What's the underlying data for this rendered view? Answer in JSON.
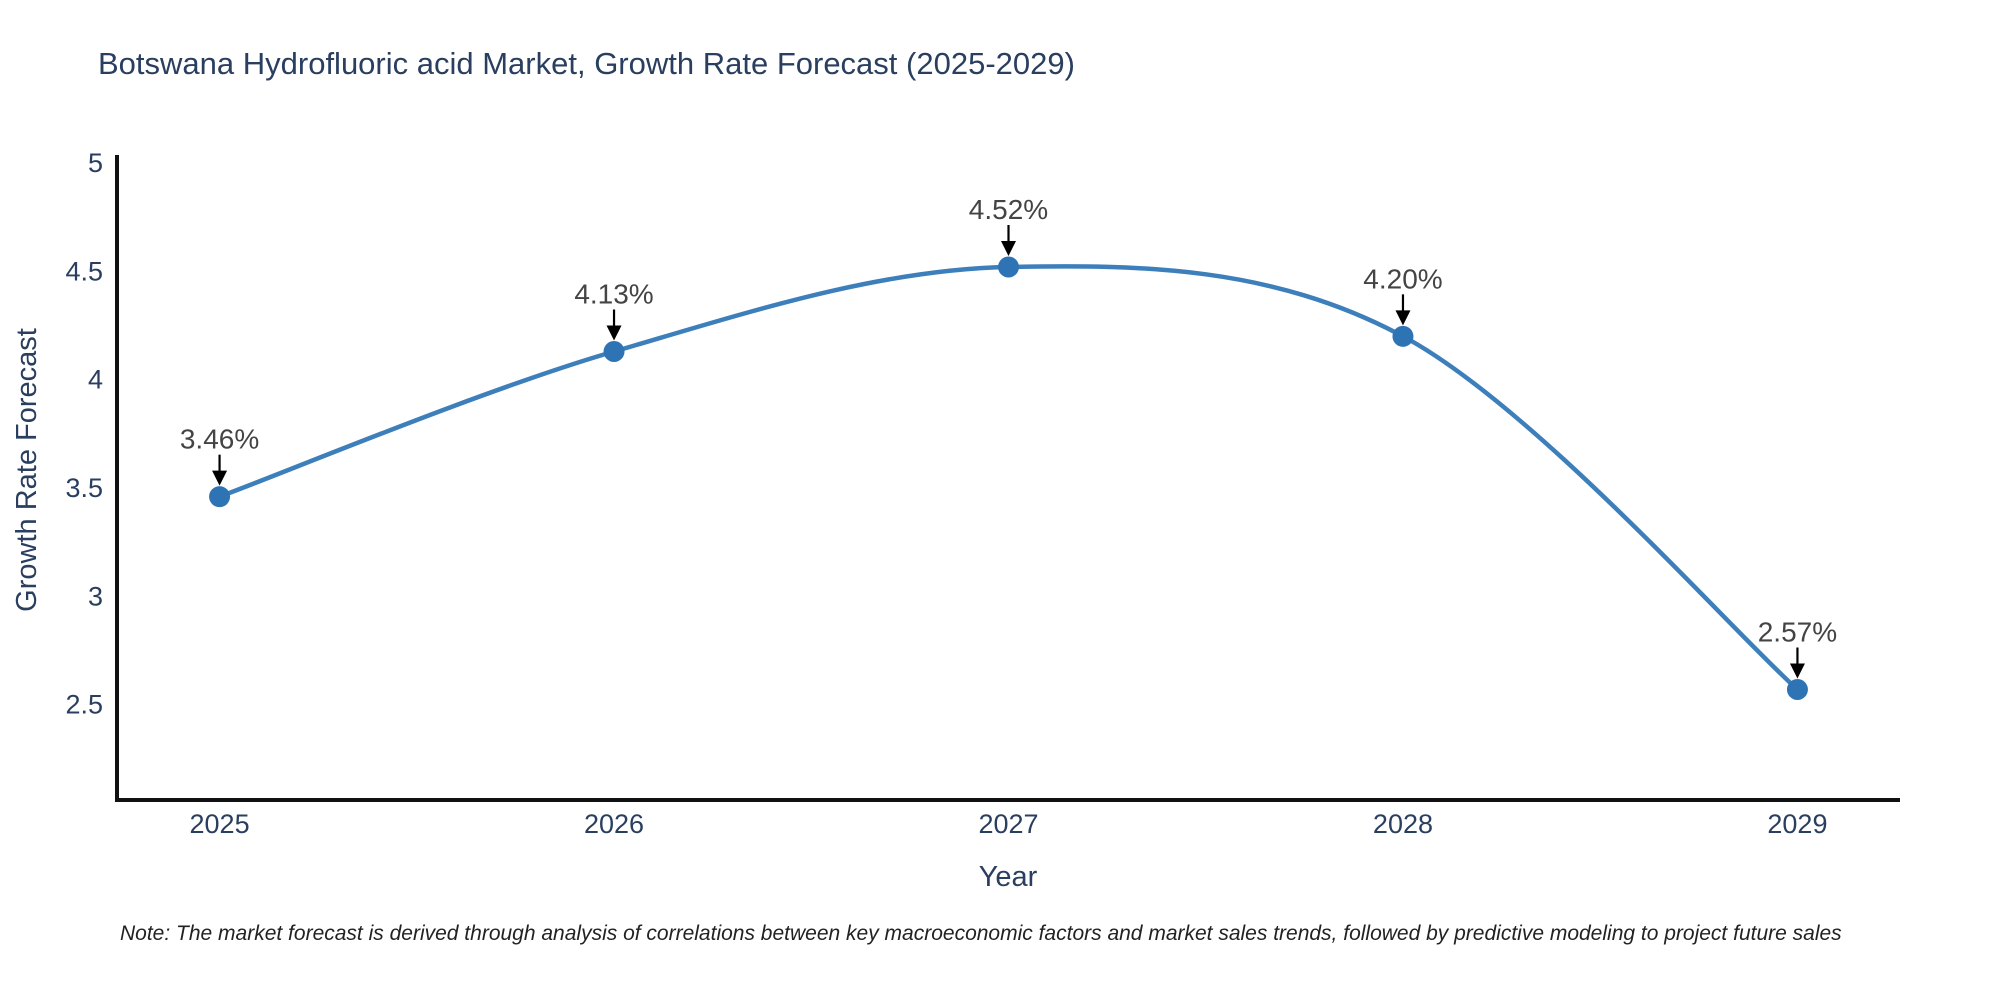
{
  "title": "Botswana Hydrofluoric acid Market, Growth Rate Forecast (2025-2029)",
  "note": "Note: The market forecast is derived through analysis of correlations between key macroeconomic factors and market sales trends, followed by predictive modeling to project future sales",
  "chart_data": {
    "type": "line",
    "title": "Botswana Hydrofluoric acid Market, Growth Rate Forecast (2025-2029)",
    "xlabel": "Year",
    "ylabel": "Growth Rate Forecast",
    "x": [
      2025,
      2026,
      2027,
      2028,
      2029
    ],
    "values": [
      3.46,
      4.13,
      4.52,
      4.2,
      2.57
    ],
    "point_labels": [
      "3.46%",
      "4.13%",
      "4.52%",
      "4.20%",
      "2.57%"
    ],
    "xticks": [
      "2025",
      "2026",
      "2027",
      "2028",
      "2029"
    ],
    "yticks": [
      "2.5",
      "3",
      "3.5",
      "4",
      "4.5",
      "5"
    ],
    "ytick_values": [
      2.5,
      3,
      3.5,
      4,
      4.5,
      5
    ],
    "xlim": [
      2024.74,
      2029.26
    ],
    "ylim": [
      2.06,
      5.0
    ],
    "grid": false,
    "legend": false,
    "line_shape": "spline",
    "colors": {
      "line": "#3d7fbb",
      "marker": "#2e74b5",
      "axis": "#111111",
      "title": "#2a3f5f",
      "tick": "#2a3f5f",
      "annotation": "#444444",
      "note": "#222222"
    }
  }
}
